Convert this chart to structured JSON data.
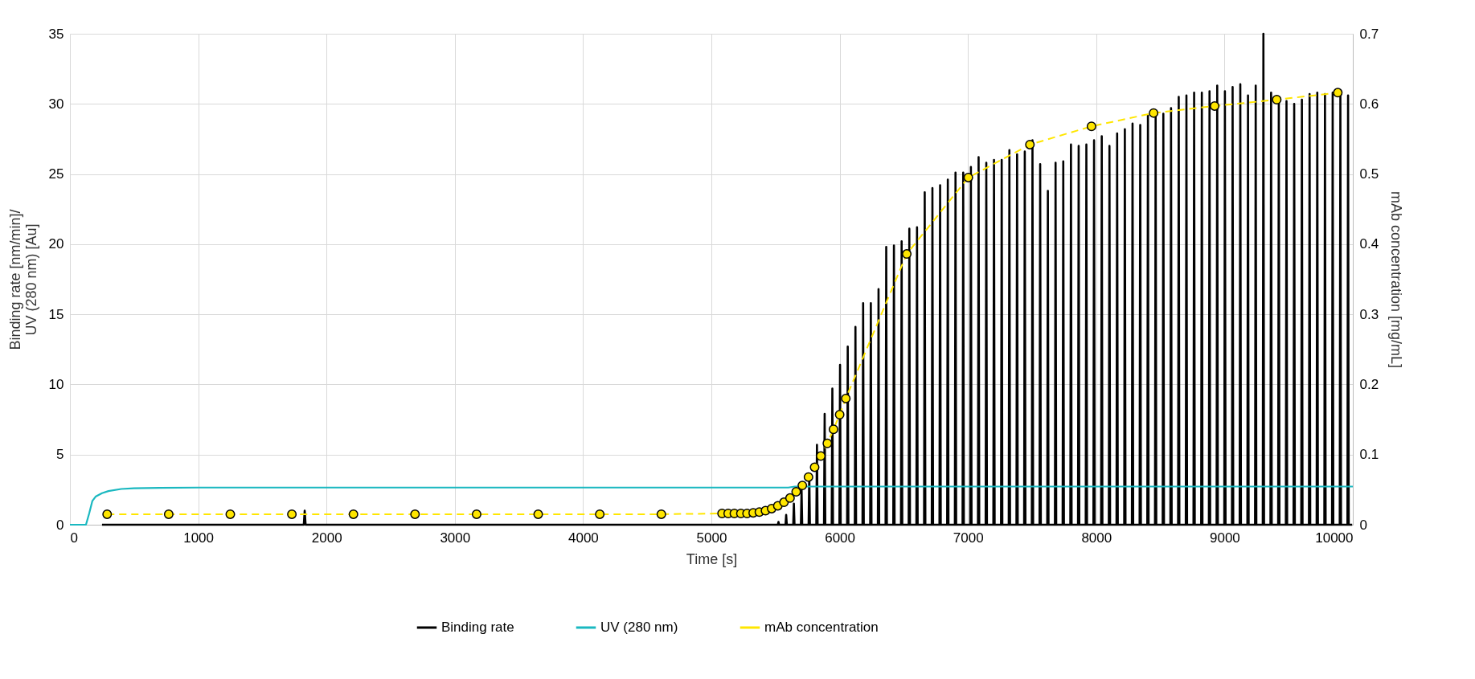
{
  "chart_data": {
    "type": "line",
    "xlabel": "Time [s]",
    "ylabel": "Binding rate [nm/min]/\nUV (280 nm) [Au]",
    "y2label": "mAb concentration [mg/mL]",
    "xlim": [
      0,
      10000
    ],
    "xticks": [
      0,
      1000,
      2000,
      3000,
      4000,
      5000,
      6000,
      7000,
      8000,
      9000,
      10000
    ],
    "ylim": [
      0,
      35
    ],
    "yticks": [
      0,
      5,
      10,
      15,
      20,
      25,
      30,
      35
    ],
    "y2lim": [
      0,
      0.7
    ],
    "y2ticks": [
      0,
      0.1,
      0.2,
      0.3,
      0.4,
      0.5,
      0.6,
      0.7
    ],
    "grid": true,
    "legend": "bottom",
    "series": [
      {
        "name": "Binding rate",
        "color": "#000000",
        "line_style": "solid",
        "x": [
          250,
          1823,
          1830,
          1837,
          5518,
          5523,
          5528,
          5578,
          5583,
          5588,
          5638,
          5643,
          5648,
          5698,
          5703,
          5708,
          5758,
          5763,
          5768,
          5818,
          5823,
          5828,
          5878,
          5883,
          5888,
          5938,
          5943,
          5948,
          5998,
          6003,
          6008,
          6058,
          6063,
          6068,
          6118,
          6123,
          6128,
          6178,
          6183,
          6188,
          6238,
          6243,
          6248,
          6298,
          6303,
          6308,
          6358,
          6363,
          6368,
          6418,
          6423,
          6428,
          6478,
          6483,
          6488,
          6538,
          6543,
          6548,
          6598,
          6603,
          6608,
          6658,
          6663,
          6668,
          6718,
          6723,
          6728,
          6778,
          6783,
          6788,
          6838,
          6843,
          6848,
          6898,
          6903,
          6908,
          6958,
          6963,
          6968,
          7018,
          7023,
          7028,
          7078,
          7083,
          7088,
          7138,
          7143,
          7148,
          7198,
          7203,
          7208,
          7258,
          7263,
          7268,
          7318,
          7323,
          7328,
          7378,
          7383,
          7388,
          7438,
          7443,
          7448,
          7498,
          7503,
          7508,
          7558,
          7563,
          7568,
          7618,
          7623,
          7628,
          7678,
          7683,
          7688,
          7738,
          7743,
          7748,
          7798,
          7803,
          7808,
          7858,
          7863,
          7868,
          7918,
          7923,
          7928,
          7978,
          7983,
          7988,
          8038,
          8043,
          8048,
          8098,
          8103,
          8108,
          8158,
          8163,
          8168,
          8218,
          8223,
          8228,
          8278,
          8283,
          8288,
          8338,
          8343,
          8348,
          8398,
          8403,
          8408,
          8458,
          8463,
          8468,
          8518,
          8523,
          8528,
          8578,
          8583,
          8588,
          8638,
          8643,
          8648,
          8698,
          8703,
          8708,
          8758,
          8763,
          8768,
          8818,
          8823,
          8828,
          8878,
          8883,
          8888,
          8938,
          8943,
          8948,
          8998,
          9003,
          9008,
          9058,
          9063,
          9068,
          9118,
          9123,
          9128,
          9178,
          9183,
          9188,
          9238,
          9243,
          9248,
          9298,
          9303,
          9308,
          9358,
          9363,
          9368,
          9418,
          9423,
          9428,
          9478,
          9483,
          9488,
          9538,
          9543,
          9548,
          9598,
          9603,
          9608,
          9658,
          9663,
          9668,
          9718,
          9723,
          9728,
          9778,
          9783,
          9788,
          9838,
          9843,
          9848,
          9898,
          9903,
          9908,
          9958,
          9963,
          9968,
          9995
        ],
        "values": [
          0,
          0,
          1.0,
          0,
          0,
          0.2,
          0,
          0,
          0.7,
          0,
          0,
          1.5,
          0,
          0,
          2.5,
          0,
          0,
          3.6,
          0,
          0,
          5.7,
          0,
          0,
          7.9,
          0,
          0,
          9.7,
          0,
          0,
          11.4,
          0,
          0,
          12.7,
          0,
          0,
          14.1,
          0,
          0,
          15.8,
          0,
          0,
          15.8,
          0,
          0,
          16.8,
          0,
          0,
          19.8,
          0,
          0,
          19.9,
          0,
          0,
          20.2,
          0,
          0,
          21.1,
          0,
          0,
          21.2,
          0,
          0,
          23.7,
          0,
          0,
          24.0,
          0,
          0,
          24.2,
          0,
          0,
          24.6,
          0,
          0,
          25.1,
          0,
          0,
          25.1,
          0,
          0,
          25.5,
          0,
          0,
          26.2,
          0,
          0,
          25.8,
          0,
          0,
          26.0,
          0,
          0,
          26.0,
          0,
          0,
          26.7,
          0,
          0,
          26.4,
          0,
          0,
          26.6,
          0,
          0,
          27.4,
          0,
          0,
          25.7,
          0,
          0,
          23.8,
          0,
          0,
          25.8,
          0,
          0,
          25.9,
          0,
          0,
          27.1,
          0,
          0,
          27.0,
          0,
          0,
          27.1,
          0,
          0,
          27.4,
          0,
          0,
          27.7,
          0,
          0,
          27.0,
          0,
          0,
          27.9,
          0,
          0,
          28.2,
          0,
          0,
          28.6,
          0,
          0,
          28.5,
          0,
          0,
          29.2,
          0,
          0,
          29.2,
          0,
          0,
          29.3,
          0,
          0,
          29.7,
          0,
          0,
          30.5,
          0,
          0,
          30.6,
          0,
          0,
          30.8,
          0,
          0,
          30.8,
          0,
          0,
          30.9,
          0,
          0,
          31.3,
          0,
          0,
          30.9,
          0,
          0,
          31.2,
          0,
          0,
          31.4,
          0,
          0,
          30.6,
          0,
          0,
          31.3,
          0,
          0,
          35,
          0,
          0,
          30.8,
          0,
          0,
          30.3,
          0,
          0,
          30.2,
          0,
          0,
          30.0,
          0,
          0,
          30.3,
          0,
          0,
          30.7,
          0,
          0,
          30.8,
          0,
          0,
          30.7,
          0,
          0,
          30.8,
          0,
          0,
          30.9,
          0,
          0,
          30.6,
          0,
          0
        ]
      },
      {
        "name": "UV (280 nm)",
        "color": "#1ab8c0",
        "line_style": "solid",
        "x": [
          0,
          125,
          150,
          175,
          200,
          250,
          300,
          400,
          500,
          700,
          1000,
          5600,
          5650,
          10000
        ],
        "values": [
          0,
          0,
          0.8,
          1.7,
          2.0,
          2.25,
          2.4,
          2.55,
          2.6,
          2.63,
          2.65,
          2.65,
          2.72,
          2.72
        ]
      },
      {
        "name": "mAb concentration",
        "color": "#ffe600",
        "axis": "y2",
        "line_style": "dashed",
        "marker": "circle",
        "x": [
          290,
          770,
          1250,
          1730,
          2210,
          2690,
          3170,
          3650,
          4130,
          4610,
          5083,
          5131,
          5179,
          5230,
          5278,
          5326,
          5374,
          5422,
          5470,
          5518,
          5566,
          5613,
          5661,
          5709,
          5757,
          5805,
          5853,
          5904,
          5952,
          6000,
          6048,
          6523,
          7003,
          7483,
          7963,
          8447,
          8923,
          9407,
          9883
        ],
        "values": [
          0.015,
          0.015,
          0.015,
          0.015,
          0.015,
          0.015,
          0.015,
          0.015,
          0.015,
          0.015,
          0.016,
          0.016,
          0.016,
          0.016,
          0.016,
          0.017,
          0.018,
          0.02,
          0.023,
          0.027,
          0.032,
          0.038,
          0.047,
          0.056,
          0.068,
          0.082,
          0.098,
          0.116,
          0.136,
          0.157,
          0.18,
          0.386,
          0.495,
          0.542,
          0.568,
          0.587,
          0.597,
          0.606,
          0.616
        ]
      }
    ]
  }
}
